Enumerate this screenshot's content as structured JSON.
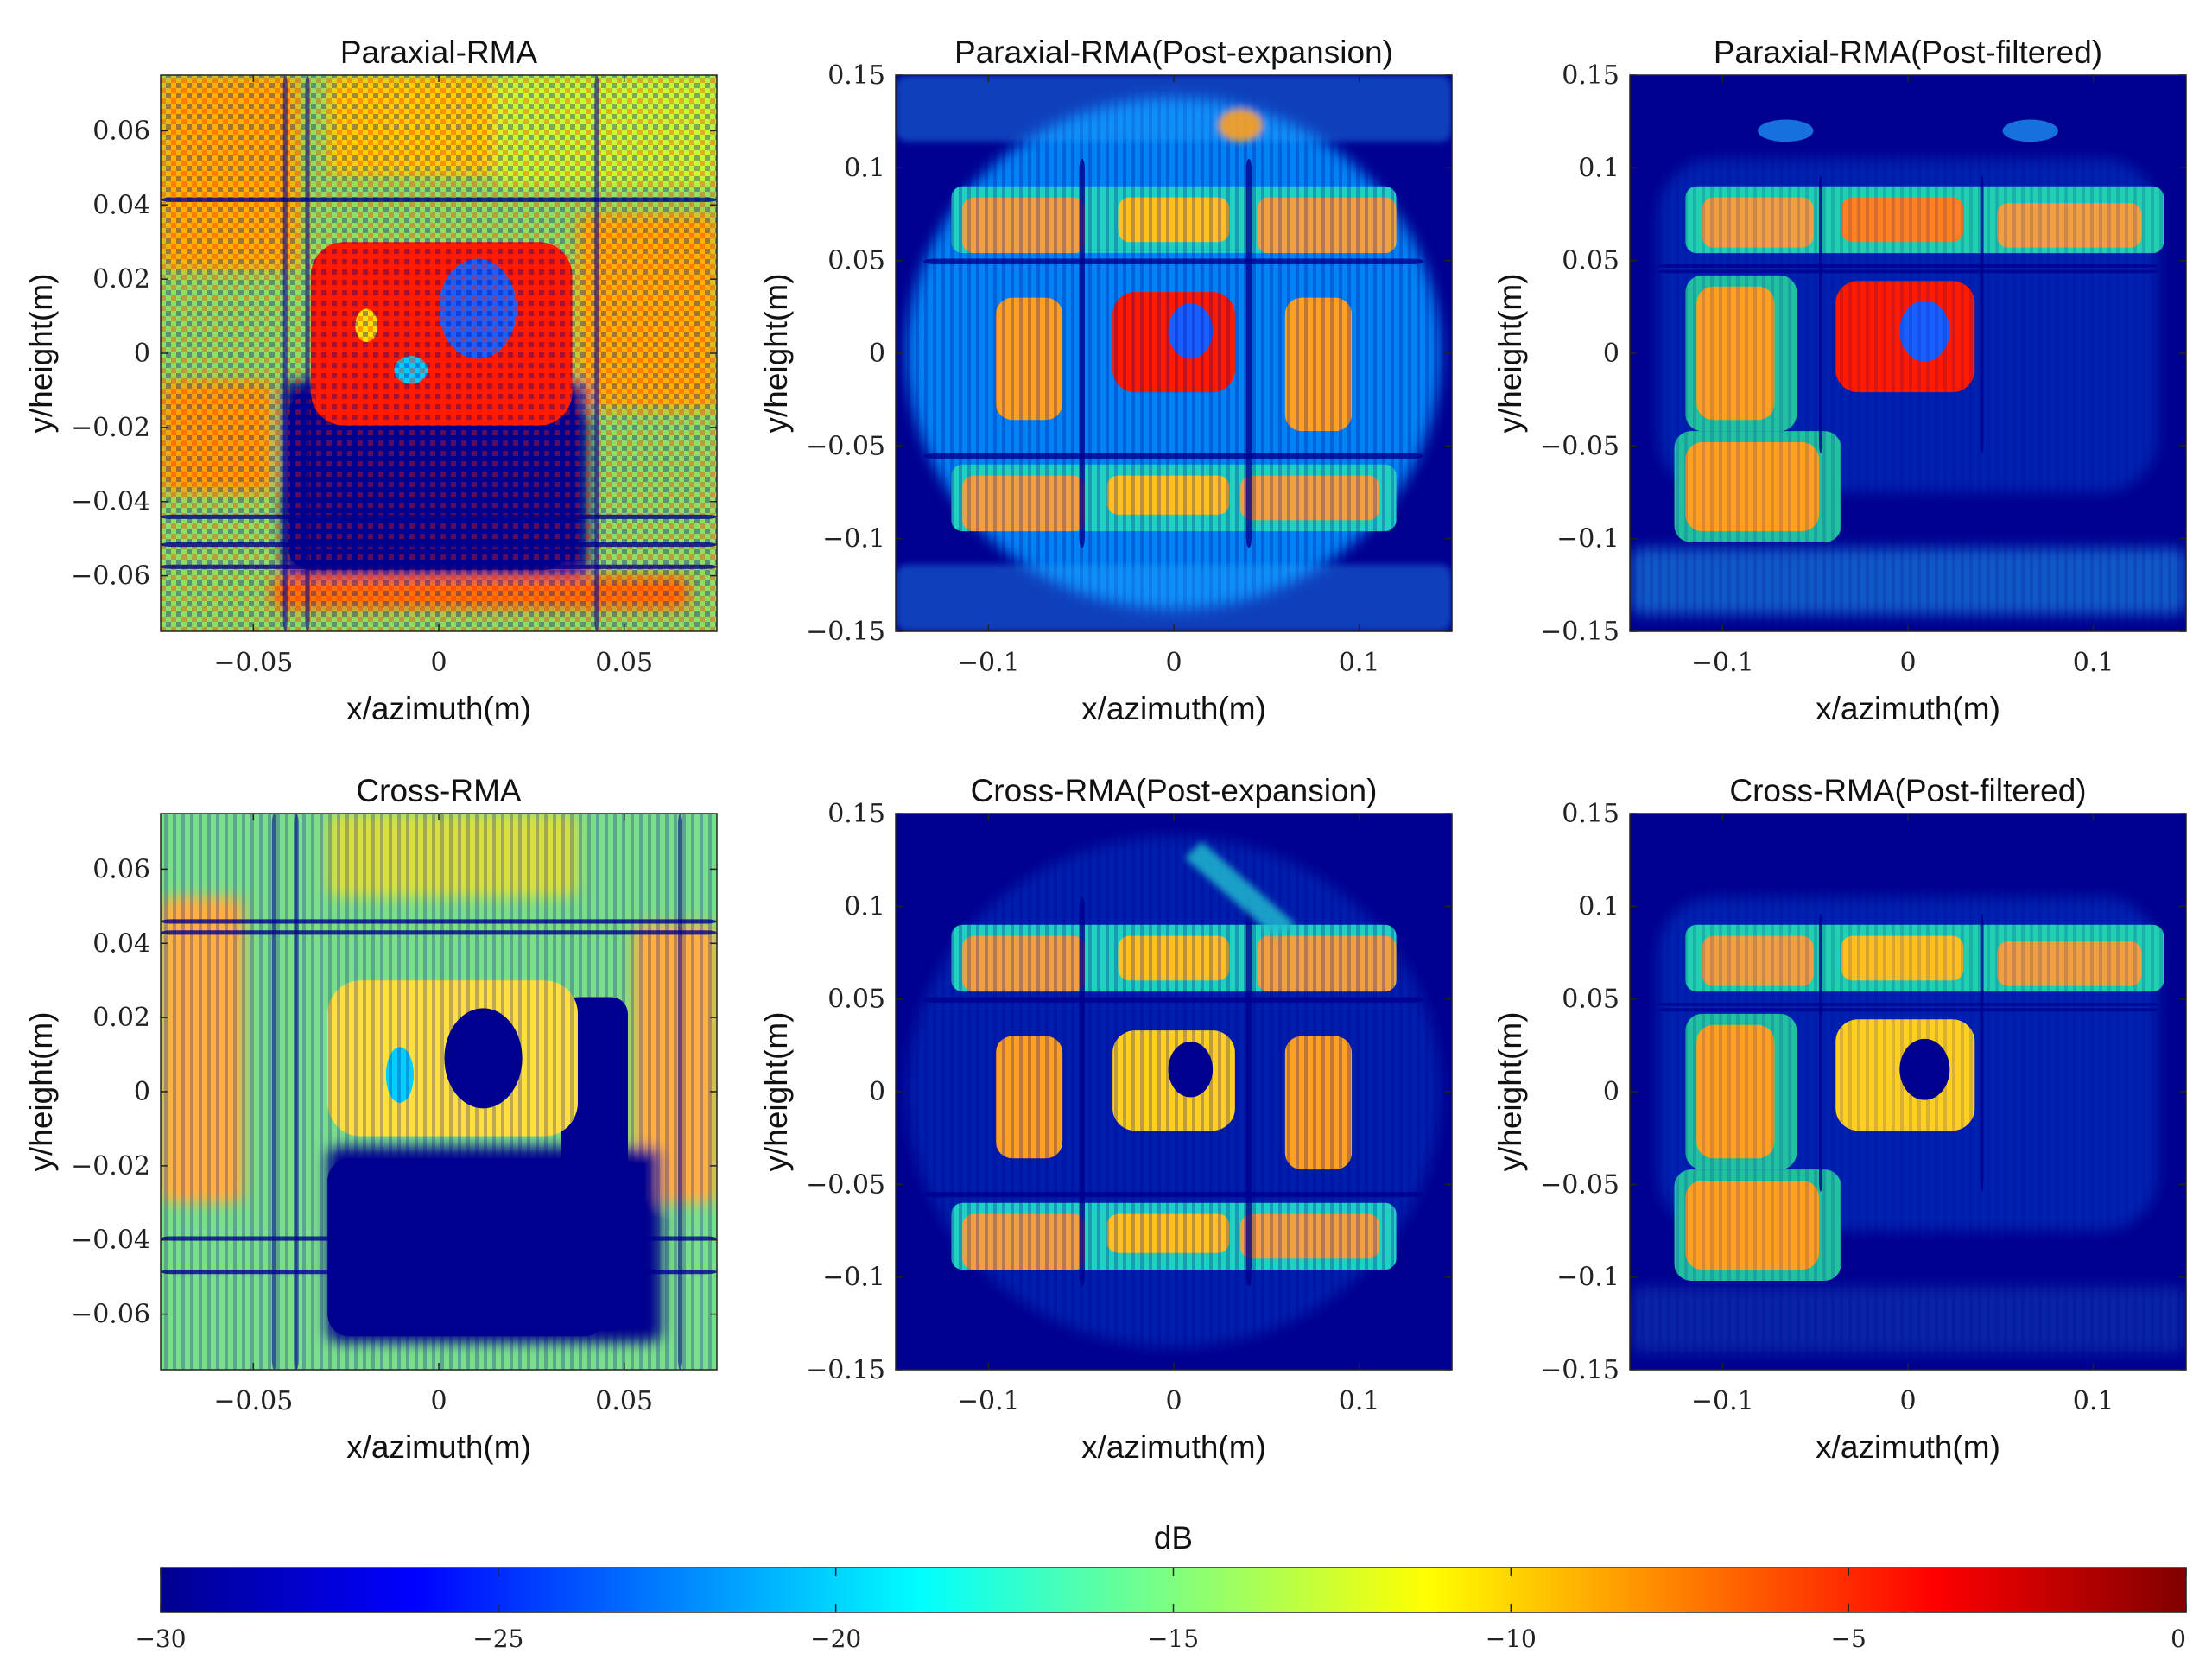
{
  "chart_data": [
    {
      "type": "heatmap",
      "title": "Paraxial-RMA",
      "xlabel": "x/azimuth(m)",
      "ylabel": "y/height(m)",
      "xlim": [
        -0.075,
        0.075
      ],
      "ylim": [
        -0.075,
        0.075
      ],
      "xticks": [
        -0.05,
        0,
        0.05
      ],
      "xtick_labels": [
        "−0.05",
        "0",
        "0.05"
      ],
      "yticks": [
        0.06,
        0.04,
        0.02,
        0,
        -0.02,
        -0.04,
        -0.06
      ],
      "ytick_labels": [
        "0.06",
        "0.04",
        "0.02",
        "0",
        "−0.02",
        "−0.04",
        "−0.06"
      ],
      "value_range_db": [
        -30,
        0
      ]
    },
    {
      "type": "heatmap",
      "title": "Paraxial-RMA(Post-expansion)",
      "xlabel": "x/azimuth(m)",
      "ylabel": "y/height(m)",
      "xlim": [
        -0.15,
        0.15
      ],
      "ylim": [
        -0.15,
        0.15
      ],
      "xticks": [
        -0.1,
        0,
        0.1
      ],
      "xtick_labels": [
        "−0.1",
        "0",
        "0.1"
      ],
      "yticks": [
        0.15,
        0.1,
        0.05,
        0,
        -0.05,
        -0.1,
        -0.15
      ],
      "ytick_labels": [
        "0.15",
        "0.1",
        "0.05",
        "0",
        "−0.05",
        "−0.1",
        "−0.15"
      ],
      "value_range_db": [
        -30,
        0
      ]
    },
    {
      "type": "heatmap",
      "title": "Paraxial-RMA(Post-filtered)",
      "xlabel": "x/azimuth(m)",
      "ylabel": "y/height(m)",
      "xlim": [
        -0.15,
        0.15
      ],
      "ylim": [
        -0.15,
        0.15
      ],
      "xticks": [
        -0.1,
        0,
        0.1
      ],
      "xtick_labels": [
        "−0.1",
        "0",
        "0.1"
      ],
      "yticks": [
        0.15,
        0.1,
        0.05,
        0,
        -0.05,
        -0.1,
        -0.15
      ],
      "ytick_labels": [
        "0.15",
        "0.1",
        "0.05",
        "0",
        "−0.05",
        "−0.1",
        "−0.15"
      ],
      "value_range_db": [
        -30,
        0
      ]
    },
    {
      "type": "heatmap",
      "title": "Cross-RMA",
      "xlabel": "x/azimuth(m)",
      "ylabel": "y/height(m)",
      "xlim": [
        -0.075,
        0.075
      ],
      "ylim": [
        -0.075,
        0.075
      ],
      "xticks": [
        -0.05,
        0,
        0.05
      ],
      "xtick_labels": [
        "−0.05",
        "0",
        "0.05"
      ],
      "yticks": [
        0.06,
        0.04,
        0.02,
        0,
        -0.02,
        -0.04,
        -0.06
      ],
      "ytick_labels": [
        "0.06",
        "0.04",
        "0.02",
        "0",
        "−0.02",
        "−0.04",
        "−0.06"
      ],
      "value_range_db": [
        -30,
        0
      ]
    },
    {
      "type": "heatmap",
      "title": "Cross-RMA(Post-expansion)",
      "xlabel": "x/azimuth(m)",
      "ylabel": "y/height(m)",
      "xlim": [
        -0.15,
        0.15
      ],
      "ylim": [
        -0.15,
        0.15
      ],
      "xticks": [
        -0.1,
        0,
        0.1
      ],
      "xtick_labels": [
        "−0.1",
        "0",
        "0.1"
      ],
      "yticks": [
        0.15,
        0.1,
        0.05,
        0,
        -0.05,
        -0.1,
        -0.15
      ],
      "ytick_labels": [
        "0.15",
        "0.1",
        "0.05",
        "0",
        "−0.05",
        "−0.1",
        "−0.15"
      ],
      "value_range_db": [
        -30,
        0
      ]
    },
    {
      "type": "heatmap",
      "title": "Cross-RMA(Post-filtered)",
      "xlabel": "x/azimuth(m)",
      "ylabel": "y/height(m)",
      "xlim": [
        -0.15,
        0.15
      ],
      "ylim": [
        -0.15,
        0.15
      ],
      "xticks": [
        -0.1,
        0,
        0.1
      ],
      "xtick_labels": [
        "−0.1",
        "0",
        "0.1"
      ],
      "yticks": [
        0.15,
        0.1,
        0.05,
        0,
        -0.05,
        -0.1,
        -0.15
      ],
      "ytick_labels": [
        "0.15",
        "0.1",
        "0.05",
        "0",
        "−0.05",
        "−0.1",
        "−0.15"
      ],
      "value_range_db": [
        -30,
        0
      ]
    }
  ],
  "colorbar": {
    "label": "dB",
    "colormap": "jet",
    "range": [
      -30,
      0
    ],
    "ticks": [
      -30,
      -25,
      -20,
      -15,
      -10,
      -5,
      0
    ],
    "tick_labels": [
      "−30",
      "−25",
      "−20",
      "−15",
      "−10",
      "−5",
      "0"
    ],
    "stops": [
      "#00008f",
      "#0000ff",
      "#00ffff",
      "#ffff00",
      "#ff0000",
      "#800000"
    ]
  }
}
